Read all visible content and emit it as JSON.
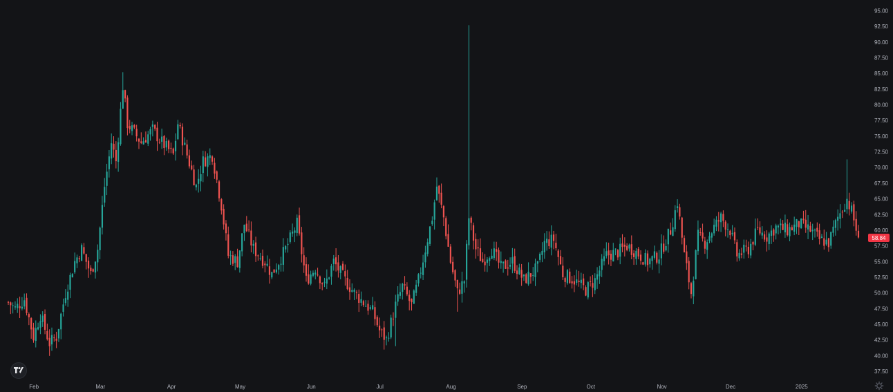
{
  "chart_data": {
    "type": "candlestick",
    "title": "",
    "ylim": [
      36.5,
      96
    ],
    "y_ticks": [
      "37.50",
      "40.00",
      "42.50",
      "45.00",
      "47.50",
      "50.00",
      "52.50",
      "55.00",
      "57.50",
      "60.00",
      "62.50",
      "65.00",
      "67.50",
      "70.00",
      "72.50",
      "75.00",
      "77.50",
      "80.00",
      "82.50",
      "85.00",
      "87.50",
      "90.00",
      "92.50",
      "95.00"
    ],
    "x_ticks": [
      "Feb",
      "Mar",
      "Apr",
      "May",
      "Jun",
      "Jul",
      "Aug",
      "Sep",
      "Oct",
      "Nov",
      "Dec",
      "2025"
    ],
    "last_price": "58.84",
    "up_color": "#26a69a",
    "down_color": "#ef5350",
    "anchors": [
      [
        "2024-01-22",
        48.5
      ],
      [
        "2024-01-25",
        47.5
      ],
      [
        "2024-01-29",
        49.0
      ],
      [
        "2024-02-02",
        43.0
      ],
      [
        "2024-02-05",
        46.5
      ],
      [
        "2024-02-09",
        42.0
      ],
      [
        "2024-02-12",
        43.0
      ],
      [
        "2024-02-16",
        50.0
      ],
      [
        "2024-02-20",
        55.0
      ],
      [
        "2024-02-23",
        57.0
      ],
      [
        "2024-02-27",
        53.0
      ],
      [
        "2024-03-01",
        57.0
      ],
      [
        "2024-03-04",
        67.0
      ],
      [
        "2024-03-07",
        74.0
      ],
      [
        "2024-03-09",
        71.0
      ],
      [
        "2024-03-12",
        83.0
      ],
      [
        "2024-03-14",
        77.0
      ],
      [
        "2024-03-20",
        74.0
      ],
      [
        "2024-03-25",
        76.0
      ],
      [
        "2024-03-29",
        74.0
      ],
      [
        "2024-04-03",
        72.0
      ],
      [
        "2024-04-05",
        77.0
      ],
      [
        "2024-04-09",
        72.0
      ],
      [
        "2024-04-13",
        67.0
      ],
      [
        "2024-04-16",
        71.0
      ],
      [
        "2024-04-20",
        72.0
      ],
      [
        "2024-04-24",
        64.0
      ],
      [
        "2024-04-27",
        56.0
      ],
      [
        "2024-05-01",
        55.0
      ],
      [
        "2024-05-04",
        61.0
      ],
      [
        "2024-05-08",
        57.0
      ],
      [
        "2024-05-13",
        55.0
      ],
      [
        "2024-05-16",
        53.0
      ],
      [
        "2024-05-22",
        57.0
      ],
      [
        "2024-05-27",
        61.0
      ],
      [
        "2024-05-31",
        52.0
      ],
      [
        "2024-06-04",
        54.0
      ],
      [
        "2024-06-08",
        51.0
      ],
      [
        "2024-06-12",
        55.0
      ],
      [
        "2024-06-17",
        52.0
      ],
      [
        "2024-06-21",
        50.0
      ],
      [
        "2024-06-25",
        48.5
      ],
      [
        "2024-06-29",
        47.0
      ],
      [
        "2024-07-02",
        44.0
      ],
      [
        "2024-07-05",
        42.5
      ],
      [
        "2024-07-09",
        48.0
      ],
      [
        "2024-07-12",
        51.0
      ],
      [
        "2024-07-16",
        48.0
      ],
      [
        "2024-07-19",
        52.0
      ],
      [
        "2024-07-22",
        57.0
      ],
      [
        "2024-07-25",
        62.0
      ],
      [
        "2024-07-27",
        67.0
      ],
      [
        "2024-07-30",
        62.0
      ],
      [
        "2024-08-02",
        55.0
      ],
      [
        "2024-08-05",
        50.0
      ],
      [
        "2024-08-08",
        52.0
      ],
      [
        "2024-08-10",
        62.0
      ],
      [
        "2024-08-13",
        57.0
      ],
      [
        "2024-08-16",
        55.0
      ],
      [
        "2024-08-20",
        57.0
      ],
      [
        "2024-08-24",
        54.0
      ],
      [
        "2024-08-29",
        55.0
      ],
      [
        "2024-09-03",
        52.0
      ],
      [
        "2024-09-09",
        54.0
      ],
      [
        "2024-09-12",
        58.0
      ],
      [
        "2024-09-16",
        58.5
      ],
      [
        "2024-09-20",
        53.0
      ],
      [
        "2024-09-25",
        52.0
      ],
      [
        "2024-09-30",
        50.5
      ],
      [
        "2024-10-04",
        52.0
      ],
      [
        "2024-10-09",
        56.0
      ],
      [
        "2024-10-14",
        56.5
      ],
      [
        "2024-10-18",
        57.5
      ],
      [
        "2024-10-22",
        56.5
      ],
      [
        "2024-10-27",
        55.0
      ],
      [
        "2024-11-01",
        56.0
      ],
      [
        "2024-11-06",
        60.0
      ],
      [
        "2024-11-09",
        64.5
      ],
      [
        "2024-11-12",
        56.0
      ],
      [
        "2024-11-15",
        50.0
      ],
      [
        "2024-11-18",
        59.0
      ],
      [
        "2024-11-21",
        58.0
      ],
      [
        "2024-11-25",
        60.5
      ],
      [
        "2024-11-28",
        62.0
      ],
      [
        "2024-12-02",
        60.0
      ],
      [
        "2024-12-05",
        56.0
      ],
      [
        "2024-12-10",
        57.0
      ],
      [
        "2024-12-14",
        60.0
      ],
      [
        "2024-12-18",
        59.0
      ],
      [
        "2024-12-22",
        60.5
      ],
      [
        "2024-12-27",
        60.0
      ],
      [
        "2025-01-01",
        61.0
      ],
      [
        "2025-01-06",
        60.0
      ],
      [
        "2025-01-10",
        58.5
      ],
      [
        "2025-01-14",
        58.0
      ],
      [
        "2025-01-18",
        62.0
      ],
      [
        "2025-01-22",
        65.0
      ],
      [
        "2025-01-24",
        63.0
      ],
      [
        "2025-01-27",
        58.84
      ]
    ],
    "wick_spikes": [
      [
        "2024-08-10",
        92.7
      ],
      [
        "2025-01-22",
        71.3
      ],
      [
        "2024-03-12",
        85.2
      ],
      [
        "2024-08-05",
        47.0
      ],
      [
        "2024-07-09",
        41.5
      ]
    ]
  },
  "icons": {
    "logo": "tradingview-logo-icon",
    "settings": "gear-icon"
  }
}
